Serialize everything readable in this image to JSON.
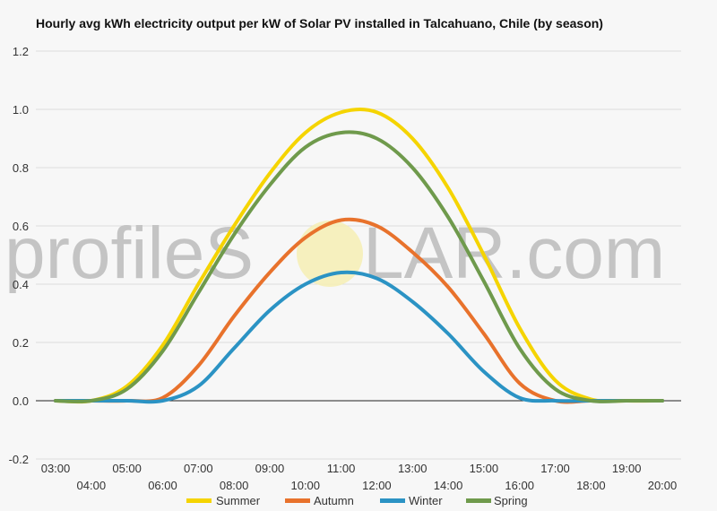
{
  "chart_data": {
    "type": "line",
    "title": "Hourly avg kWh electricity output per kW of Solar PV installed in Talcahuano, Chile (by season)",
    "xlabel": "",
    "ylabel": "",
    "x": [
      "03:00",
      "04:00",
      "05:00",
      "06:00",
      "07:00",
      "08:00",
      "09:00",
      "10:00",
      "11:00",
      "12:00",
      "13:00",
      "14:00",
      "15:00",
      "16:00",
      "17:00",
      "18:00",
      "19:00",
      "20:00"
    ],
    "ylim": [
      -0.2,
      1.2
    ],
    "yticks": [
      -0.2,
      0.0,
      0.2,
      0.4,
      0.6,
      0.8,
      1.0,
      1.2
    ],
    "grid": true,
    "legend_position": "bottom",
    "series": [
      {
        "name": "Summer",
        "color": "#f5d400",
        "values": [
          0.0,
          0.0,
          0.05,
          0.19,
          0.4,
          0.6,
          0.78,
          0.92,
          0.99,
          0.99,
          0.9,
          0.73,
          0.5,
          0.25,
          0.07,
          0.005,
          0.0,
          0.0
        ]
      },
      {
        "name": "Autumn",
        "color": "#e8722c",
        "values": [
          0.0,
          0.0,
          0.0,
          0.01,
          0.12,
          0.29,
          0.44,
          0.56,
          0.62,
          0.6,
          0.51,
          0.39,
          0.23,
          0.06,
          0.0,
          0.0,
          0.0,
          0.0
        ]
      },
      {
        "name": "Winter",
        "color": "#2b93c4",
        "values": [
          0.0,
          0.0,
          0.0,
          0.0,
          0.05,
          0.18,
          0.31,
          0.4,
          0.44,
          0.42,
          0.34,
          0.23,
          0.1,
          0.01,
          0.0,
          0.0,
          0.0,
          0.0
        ]
      },
      {
        "name": "Spring",
        "color": "#6f9a4c",
        "values": [
          0.0,
          0.0,
          0.04,
          0.17,
          0.37,
          0.57,
          0.74,
          0.87,
          0.92,
          0.9,
          0.8,
          0.63,
          0.41,
          0.18,
          0.04,
          0.0,
          0.0,
          0.0
        ]
      }
    ]
  },
  "watermark": {
    "text_left": "profileS",
    "text_right": "LAR.com"
  }
}
